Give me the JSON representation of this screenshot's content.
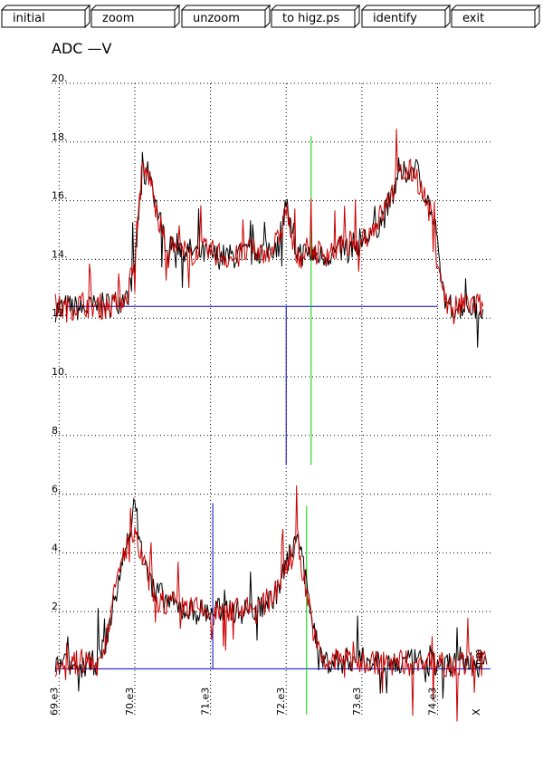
{
  "toolbar": {
    "buttons": [
      {
        "id": "initial",
        "label": "initial"
      },
      {
        "id": "zoom",
        "label": "zoom"
      },
      {
        "id": "unzoom",
        "label": "unzoom"
      },
      {
        "id": "higz",
        "label": "to higz.ps"
      },
      {
        "id": "identify",
        "label": "identify"
      },
      {
        "id": "exit",
        "label": "exit"
      }
    ]
  },
  "chart_data": {
    "type": "line",
    "title": "ADC  —V",
    "xlabel": "X",
    "ylabel": "",
    "corner_label": "mm",
    "xlim": [
      68900,
      74700
    ],
    "ylim": [
      0,
      20
    ],
    "grid": true,
    "x_ticks": [
      "69.e3",
      "70.e3",
      "71.e3",
      "72.e3",
      "73.e3",
      "74.e3"
    ],
    "x_tick_values": [
      69000,
      70000,
      71000,
      72000,
      73000,
      74000
    ],
    "y_ticks": [
      "2.",
      "4.",
      "6.",
      "8.",
      "10.",
      "12.",
      "14.",
      "16.",
      "18.",
      "20."
    ],
    "y_tick_values": [
      2,
      4,
      6,
      8,
      10,
      12,
      14,
      16,
      18,
      20
    ],
    "series": [
      {
        "color": "#000000",
        "x": [
          68950,
          69100,
          69300,
          69500,
          69700,
          69900,
          70000,
          70050,
          70100,
          70200,
          70300,
          70400,
          70500,
          70700,
          70900,
          71100,
          71300,
          71500,
          71700,
          71900,
          72000,
          72100,
          72200,
          72300,
          72500,
          72700,
          72900,
          73100,
          73300,
          73500,
          73700,
          73900,
          74000,
          74100,
          74200,
          74400,
          74600
        ],
        "values": [
          12.3,
          12.4,
          12.3,
          12.4,
          12.5,
          12.7,
          13.8,
          15.5,
          16.8,
          17.0,
          15.6,
          14.7,
          14.6,
          14.3,
          14.2,
          14.1,
          14.1,
          14.2,
          14.3,
          14.5,
          16.0,
          14.4,
          14.2,
          14.2,
          14.1,
          14.3,
          14.5,
          14.8,
          15.5,
          16.8,
          17.2,
          15.8,
          14.3,
          12.5,
          12.4,
          12.4,
          12.3
        ]
      },
      {
        "color": "#cc0000",
        "x": [
          68950,
          69100,
          69300,
          69500,
          69700,
          69900,
          70000,
          70050,
          70100,
          70200,
          70300,
          70400,
          70500,
          70700,
          70900,
          71100,
          71300,
          71500,
          71700,
          71900,
          72000,
          72100,
          72200,
          72300,
          72500,
          72700,
          72900,
          73100,
          73300,
          73500,
          73700,
          73900,
          74000,
          74100,
          74200,
          74400,
          74600
        ],
        "values": [
          12.4,
          12.3,
          12.5,
          12.4,
          12.4,
          12.8,
          14.2,
          15.8,
          17.0,
          16.8,
          15.4,
          14.6,
          14.4,
          14.2,
          14.3,
          14.2,
          14.0,
          14.3,
          14.2,
          14.6,
          15.8,
          14.3,
          14.1,
          14.3,
          14.2,
          14.4,
          14.6,
          14.9,
          15.7,
          16.9,
          17.0,
          15.6,
          14.2,
          12.6,
          12.3,
          12.5,
          12.4
        ]
      },
      {
        "color": "#000000",
        "x": [
          68950,
          69100,
          69300,
          69500,
          69600,
          69700,
          69800,
          69850,
          69900,
          70000,
          70100,
          70200,
          70400,
          70600,
          70800,
          71000,
          71200,
          71400,
          71600,
          71800,
          71900,
          72000,
          72100,
          72150,
          72200,
          72300,
          72400,
          72500,
          72700,
          72900,
          73100,
          73300,
          73500,
          73700,
          73900,
          74100,
          74300,
          74500,
          74650
        ],
        "values": [
          0.1,
          0.2,
          0.1,
          0.3,
          0.8,
          2.0,
          3.2,
          3.8,
          4.5,
          5.6,
          3.9,
          3.0,
          2.4,
          2.1,
          2.0,
          2.0,
          2.1,
          2.0,
          2.1,
          2.4,
          2.8,
          3.6,
          4.3,
          5.0,
          3.8,
          2.5,
          1.0,
          0.3,
          0.3,
          0.4,
          0.3,
          0.3,
          0.2,
          0.3,
          0.2,
          0.2,
          0.3,
          0.2,
          0.2
        ]
      },
      {
        "color": "#cc0000",
        "x": [
          68950,
          69100,
          69300,
          69500,
          69600,
          69700,
          69800,
          69850,
          69900,
          70000,
          70100,
          70200,
          70400,
          70600,
          70800,
          71000,
          71200,
          71400,
          71600,
          71800,
          71900,
          72000,
          72100,
          72150,
          72200,
          72300,
          72400,
          72500,
          72700,
          72900,
          73100,
          73300,
          73500,
          73700,
          73900,
          74100,
          74300,
          74500,
          74650
        ],
        "values": [
          0.2,
          0.1,
          0.3,
          0.2,
          0.9,
          2.2,
          3.4,
          3.9,
          4.3,
          4.5,
          3.8,
          2.9,
          2.3,
          2.2,
          2.1,
          1.9,
          2.0,
          2.1,
          2.0,
          2.5,
          2.9,
          3.5,
          4.0,
          4.6,
          3.6,
          2.3,
          0.8,
          0.2,
          0.4,
          0.3,
          0.3,
          0.2,
          0.3,
          0.2,
          0.3,
          0.2,
          0.2,
          0.3,
          0.2
        ]
      }
    ],
    "reference_lines": [
      {
        "color": "#0000cc",
        "orientation": "horizontal",
        "y": 12.4,
        "x_from": 69100,
        "x_to": 74000
      },
      {
        "color": "#0000cc",
        "orientation": "horizontal",
        "y": 0.05,
        "x_from": 68950,
        "x_to": 74700
      },
      {
        "color": "#0000cc",
        "orientation": "vertical",
        "x": 72000,
        "y_from": 7.0,
        "y_to": 12.4
      },
      {
        "color": "#0000cc",
        "orientation": "vertical",
        "x": 71030,
        "y_from": 0.05,
        "y_to": 5.7
      },
      {
        "color": "#00cc00",
        "orientation": "vertical",
        "x": 72330,
        "y_from": 7.0,
        "y_to": 18.2
      },
      {
        "color": "#00cc00",
        "orientation": "vertical",
        "x": 72270,
        "y_from": -1.5,
        "y_to": 5.6
      }
    ]
  }
}
